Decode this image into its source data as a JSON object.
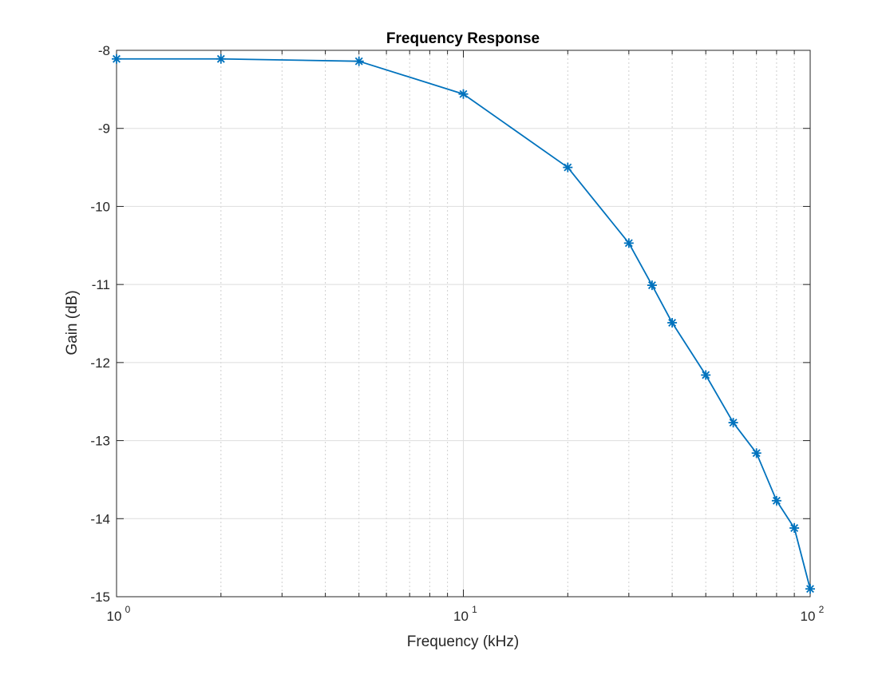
{
  "chart_data": {
    "type": "line",
    "title": "Frequency Response",
    "xlabel": "Frequency (kHz)",
    "ylabel": "Gain (dB)",
    "x_scale": "log",
    "xlim": [
      1,
      100
    ],
    "ylim": [
      -15,
      -8
    ],
    "x_ticks": [
      {
        "value": 1,
        "base": "10",
        "exp": "0"
      },
      {
        "value": 10,
        "base": "10",
        "exp": "1"
      },
      {
        "value": 100,
        "base": "10",
        "exp": "2"
      }
    ],
    "y_ticks": [
      {
        "value": -8,
        "label": "-8"
      },
      {
        "value": -9,
        "label": "-9"
      },
      {
        "value": -10,
        "label": "-10"
      },
      {
        "value": -11,
        "label": "-11"
      },
      {
        "value": -12,
        "label": "-12"
      },
      {
        "value": -13,
        "label": "-13"
      },
      {
        "value": -14,
        "label": "-14"
      },
      {
        "value": -15,
        "label": "-15"
      }
    ],
    "grid": true,
    "minor_grid": true,
    "line_color": "#0072BD",
    "marker": "asterisk",
    "series": [
      {
        "x": [
          1,
          2,
          5,
          10,
          20,
          30,
          35,
          40,
          50,
          60,
          70,
          80,
          90,
          100
        ],
        "y": [
          -8.11,
          -8.11,
          -8.14,
          -8.56,
          -9.5,
          -10.47,
          -11.01,
          -11.49,
          -12.16,
          -12.77,
          -13.16,
          -13.77,
          -14.12,
          -14.9
        ]
      }
    ]
  }
}
